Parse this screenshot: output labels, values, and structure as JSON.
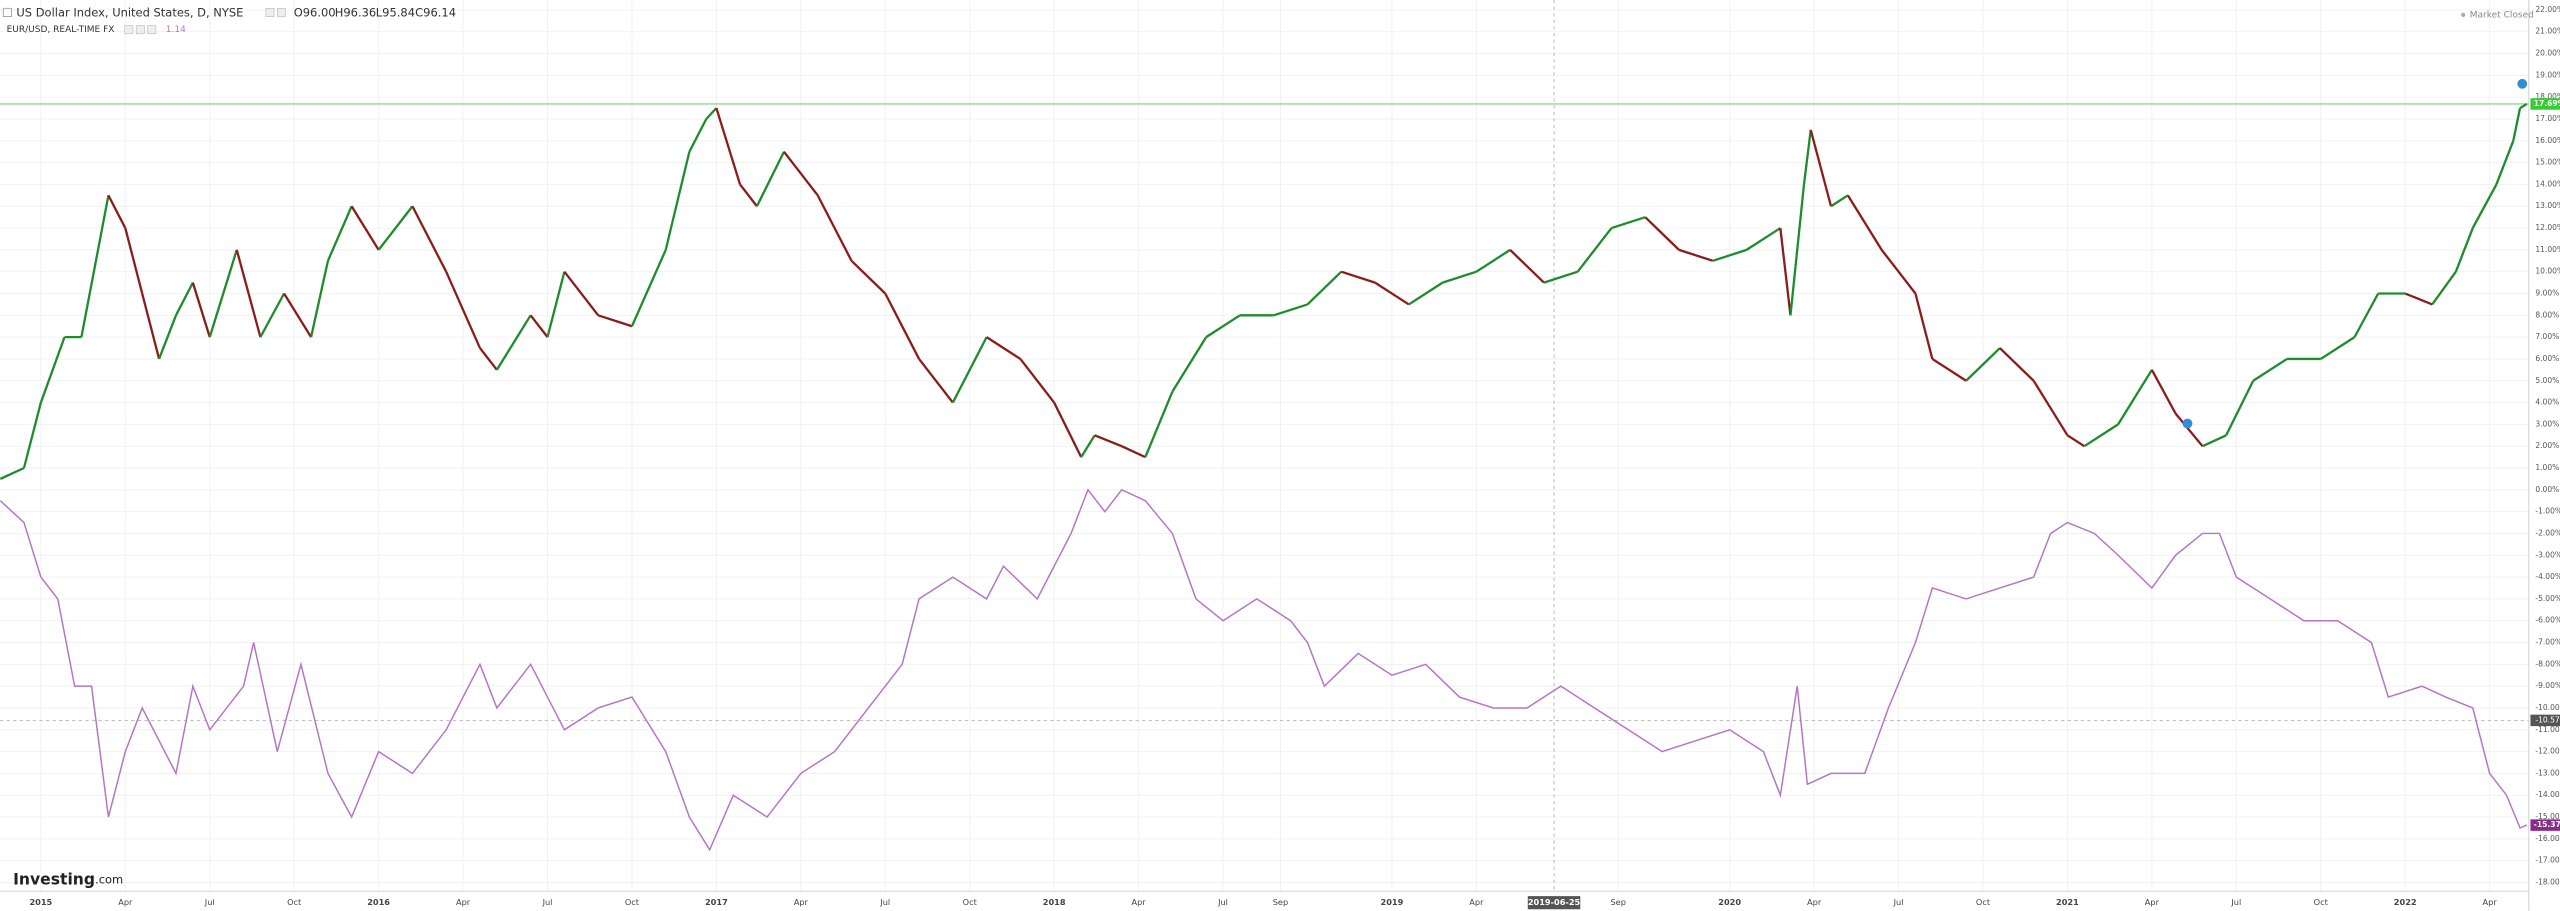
{
  "header": {
    "title": "US Dollar Index, United States, D, NYSE",
    "open": "O96.00",
    "high": "H96.36",
    "low": "L95.84",
    "close": "C96.14",
    "compare": "EUR/USD, REAL-TIME FX",
    "compare_value": "1.14",
    "status": "Market Closed",
    "logo": "Investing",
    "logo_suffix": ".com"
  },
  "chart_data": {
    "type": "line",
    "xlim": [
      2014.879,
      2022.366
    ],
    "ylim": [
      -18.4,
      22.45
    ],
    "grid": true,
    "xticks": [
      {
        "value": 2015,
        "label": "2015"
      },
      {
        "value": 2015.25,
        "label": "Apr"
      },
      {
        "value": 2015.5,
        "label": "Jul"
      },
      {
        "value": 2015.75,
        "label": "Oct"
      },
      {
        "value": 2016,
        "label": "2016"
      },
      {
        "value": 2016.25,
        "label": "Apr"
      },
      {
        "value": 2016.5,
        "label": "Jul"
      },
      {
        "value": 2016.75,
        "label": "Oct"
      },
      {
        "value": 2017,
        "label": "2017"
      },
      {
        "value": 2017.25,
        "label": "Apr"
      },
      {
        "value": 2017.5,
        "label": "Jul"
      },
      {
        "value": 2017.75,
        "label": "Oct"
      },
      {
        "value": 2018,
        "label": "2018"
      },
      {
        "value": 2018.25,
        "label": "Apr"
      },
      {
        "value": 2018.5,
        "label": "Jul"
      },
      {
        "value": 2018.67,
        "label": "Sep"
      },
      {
        "value": 2019,
        "label": "2019"
      },
      {
        "value": 2019.25,
        "label": "Apr"
      },
      {
        "value": 2019.67,
        "label": "Sep"
      },
      {
        "value": 2020,
        "label": "2020"
      },
      {
        "value": 2020.25,
        "label": "Apr"
      },
      {
        "value": 2020.5,
        "label": "Jul"
      },
      {
        "value": 2020.75,
        "label": "Oct"
      },
      {
        "value": 2021,
        "label": "2021"
      },
      {
        "value": 2021.25,
        "label": "Apr"
      },
      {
        "value": 2021.5,
        "label": "Jul"
      },
      {
        "value": 2021.75,
        "label": "Oct"
      },
      {
        "value": 2022,
        "label": "2022"
      },
      {
        "value": 2022.25,
        "label": "Apr"
      }
    ],
    "yticks": [
      {
        "value": 22,
        "label": "22.00%"
      },
      {
        "value": 21,
        "label": "21.00%"
      },
      {
        "value": 20,
        "label": "20.00%"
      },
      {
        "value": 19,
        "label": "19.00%"
      },
      {
        "value": 18,
        "label": "18.00%"
      },
      {
        "value": 17,
        "label": "17.00%"
      },
      {
        "value": 16,
        "label": "16.00%"
      },
      {
        "value": 15,
        "label": "15.00%"
      },
      {
        "value": 14,
        "label": "14.00%"
      },
      {
        "value": 13,
        "label": "13.00%"
      },
      {
        "value": 12,
        "label": "12.00%"
      },
      {
        "value": 11,
        "label": "11.00%"
      },
      {
        "value": 10,
        "label": "10.00%"
      },
      {
        "value": 9,
        "label": "9.00%"
      },
      {
        "value": 8,
        "label": "8.00%"
      },
      {
        "value": 7,
        "label": "7.00%"
      },
      {
        "value": 6,
        "label": "6.00%"
      },
      {
        "value": 5,
        "label": "5.00%"
      },
      {
        "value": 4,
        "label": "4.00%"
      },
      {
        "value": 3,
        "label": "3.00%"
      },
      {
        "value": 2,
        "label": "2.00%"
      },
      {
        "value": 1,
        "label": "1.00%"
      },
      {
        "value": 0,
        "label": "0.00%"
      },
      {
        "value": -1,
        "label": "-1.00%"
      },
      {
        "value": -2,
        "label": "-2.00%"
      },
      {
        "value": -3,
        "label": "-3.00%"
      },
      {
        "value": -4,
        "label": "-4.00%"
      },
      {
        "value": -5,
        "label": "-5.00%"
      },
      {
        "value": -6,
        "label": "-6.00%"
      },
      {
        "value": -7,
        "label": "-7.00%"
      },
      {
        "value": -8,
        "label": "-8.00%"
      },
      {
        "value": -9,
        "label": "-9.00%"
      },
      {
        "value": -10,
        "label": "-10.00%"
      },
      {
        "value": -11,
        "label": "-11.00%"
      },
      {
        "value": -12,
        "label": "-12.00%"
      },
      {
        "value": -13,
        "label": "-13.00%"
      },
      {
        "value": -14,
        "label": "-14.00%"
      },
      {
        "value": -15,
        "label": "-15.00%"
      },
      {
        "value": -16,
        "label": "-16.00%"
      },
      {
        "value": -17,
        "label": "-17.00%"
      },
      {
        "value": -18,
        "label": "-18.00%"
      }
    ],
    "crosshair": {
      "x": 2019.48,
      "x_label": "2019-06-25",
      "y": -10.57,
      "y_label": "-10.57"
    },
    "series": [
      {
        "name": "US Dollar Index",
        "up_color": "#1e8c2c",
        "down_color": "#8b1c1c",
        "last_value": {
          "value": 17.69,
          "label": "17.69%"
        },
        "line_color": "#8fdc8f",
        "label_color": "#33cc33",
        "x": [
          2014.88,
          2014.95,
          2015.0,
          2015.07,
          2015.12,
          2015.2,
          2015.25,
          2015.3,
          2015.35,
          2015.4,
          2015.45,
          2015.5,
          2015.58,
          2015.65,
          2015.72,
          2015.8,
          2015.85,
          2015.92,
          2016.0,
          2016.1,
          2016.2,
          2016.3,
          2016.35,
          2016.45,
          2016.5,
          2016.55,
          2016.65,
          2016.75,
          2016.85,
          2016.92,
          2016.97,
          2017.0,
          2017.07,
          2017.12,
          2017.2,
          2017.3,
          2017.4,
          2017.5,
          2017.6,
          2017.7,
          2017.8,
          2017.9,
          2018.0,
          2018.08,
          2018.12,
          2018.2,
          2018.27,
          2018.35,
          2018.45,
          2018.55,
          2018.65,
          2018.75,
          2018.85,
          2018.95,
          2019.05,
          2019.15,
          2019.25,
          2019.35,
          2019.45,
          2019.55,
          2019.65,
          2019.75,
          2019.85,
          2019.95,
          2020.05,
          2020.15,
          2020.18,
          2020.22,
          2020.24,
          2020.3,
          2020.35,
          2020.45,
          2020.55,
          2020.6,
          2020.7,
          2020.8,
          2020.9,
          2021.0,
          2021.05,
          2021.15,
          2021.25,
          2021.32,
          2021.4,
          2021.47,
          2021.55,
          2021.65,
          2021.75,
          2021.85,
          2021.92,
          2022.0,
          2022.08,
          2022.15,
          2022.2,
          2022.27,
          2022.32,
          2022.34,
          2022.36
        ],
        "values": [
          0.5,
          1,
          4,
          7,
          7,
          13.5,
          12,
          9,
          6,
          8,
          9.5,
          7,
          11,
          7,
          9,
          7,
          10.5,
          13,
          11,
          13,
          10,
          6.5,
          5.5,
          8,
          7,
          10,
          8,
          7.5,
          11,
          15.5,
          17,
          17.5,
          14,
          13,
          15.5,
          13.5,
          10.5,
          9,
          6,
          4,
          7,
          6,
          4,
          1.5,
          2.5,
          2,
          1.5,
          4.5,
          7,
          8,
          8,
          8.5,
          10,
          9.5,
          8.5,
          9.5,
          10,
          11,
          9.5,
          10,
          12,
          12.5,
          11,
          10.5,
          11,
          12,
          8,
          14,
          16.5,
          13,
          13.5,
          11,
          9,
          6,
          5,
          6.5,
          5,
          2.5,
          2,
          3,
          5.5,
          3.5,
          2,
          2.5,
          5,
          6,
          6,
          7,
          9,
          9,
          8.5,
          10,
          12,
          14,
          16,
          17.5,
          17.69
        ]
      },
      {
        "name": "EUR/USD",
        "color": "#b574c6",
        "label_color": "#8a2a8a",
        "last_value": {
          "value": -15.37,
          "label": "-15.37%"
        },
        "x": [
          2014.88,
          2014.95,
          2015.0,
          2015.05,
          2015.1,
          2015.15,
          2015.2,
          2015.25,
          2015.3,
          2015.4,
          2015.45,
          2015.5,
          2015.6,
          2015.63,
          2015.7,
          2015.77,
          2015.85,
          2015.92,
          2016.0,
          2016.1,
          2016.2,
          2016.3,
          2016.35,
          2016.45,
          2016.55,
          2016.65,
          2016.75,
          2016.85,
          2016.92,
          2016.98,
          2017.05,
          2017.15,
          2017.25,
          2017.35,
          2017.45,
          2017.55,
          2017.6,
          2017.7,
          2017.8,
          2017.85,
          2017.95,
          2018.05,
          2018.1,
          2018.15,
          2018.2,
          2018.27,
          2018.35,
          2018.42,
          2018.5,
          2018.6,
          2018.7,
          2018.75,
          2018.8,
          2018.9,
          2019.0,
          2019.1,
          2019.2,
          2019.3,
          2019.4,
          2019.5,
          2019.6,
          2019.7,
          2019.8,
          2019.9,
          2020.0,
          2020.1,
          2020.15,
          2020.2,
          2020.23,
          2020.3,
          2020.4,
          2020.47,
          2020.55,
          2020.6,
          2020.7,
          2020.8,
          2020.9,
          2020.95,
          2021.0,
          2021.08,
          2021.15,
          2021.25,
          2021.32,
          2021.4,
          2021.45,
          2021.5,
          2021.6,
          2021.7,
          2021.8,
          2021.85,
          2021.9,
          2021.95,
          2022.05,
          2022.12,
          2022.2,
          2022.25,
          2022.3,
          2022.34,
          2022.36
        ],
        "values": [
          -0.5,
          -1.5,
          -4,
          -5,
          -9,
          -9,
          -15,
          -12,
          -10,
          -13,
          -9,
          -11,
          -9,
          -7,
          -12,
          -8,
          -13,
          -15,
          -12,
          -13,
          -11,
          -8,
          -10,
          -8,
          -11,
          -10,
          -9.5,
          -12,
          -15,
          -16.5,
          -14,
          -15,
          -13,
          -12,
          -10,
          -8,
          -5,
          -4,
          -5,
          -3.5,
          -5,
          -2,
          0,
          -1,
          0,
          -0.5,
          -2,
          -5,
          -6,
          -5,
          -6,
          -7,
          -9,
          -7.5,
          -8.5,
          -8,
          -9.5,
          -10,
          -10,
          -9,
          -10,
          -11,
          -12,
          -11.5,
          -11,
          -12,
          -14,
          -9,
          -13.5,
          -13,
          -13,
          -10,
          -7,
          -4.5,
          -5,
          -4.5,
          -4,
          -2,
          -1.5,
          -2,
          -3,
          -4.5,
          -3,
          -2,
          -2,
          -4,
          -5,
          -6,
          -6,
          -6.5,
          -7,
          -9.5,
          -9,
          -9.5,
          -10,
          -13,
          -14,
          -15.5,
          -15.37
        ]
      }
    ]
  }
}
